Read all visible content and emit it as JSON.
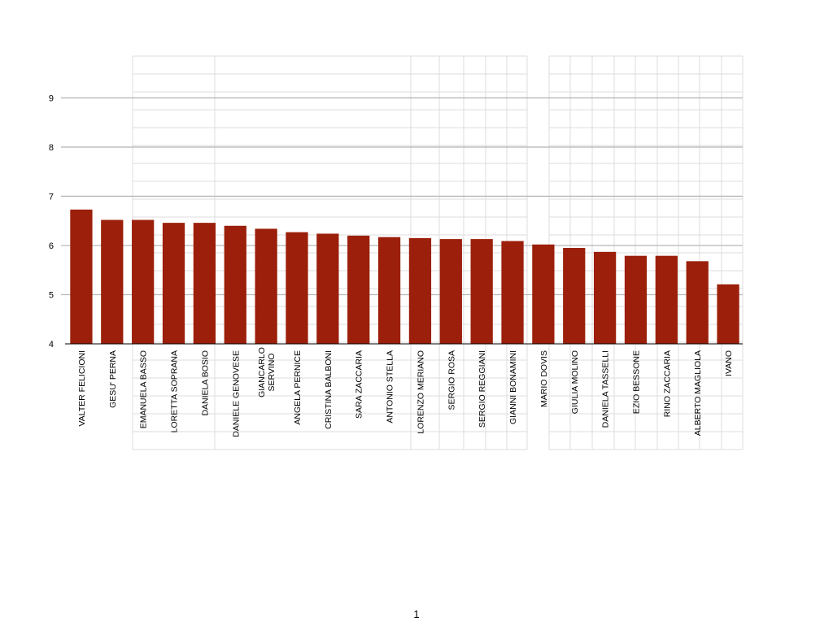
{
  "chart_data": {
    "type": "bar",
    "title": "",
    "xlabel": "",
    "ylabel": "",
    "ylim": [
      4,
      9.85
    ],
    "yticks": [
      4,
      5,
      6,
      7,
      8,
      9
    ],
    "grid": true,
    "bar_color": "#9b1f0a",
    "categories": [
      "VALTER FELICIONI",
      "GESU' PERNA",
      "EMANUELA  BASSO",
      "LORETTA SOPRANA",
      "DANIELA BOSIO",
      "DANIELE GENOVESE",
      "GIANCARLO SERVINO",
      "ANGELA PERNICE",
      "CRISTINA BALBONI",
      "SARA  ZACCARIA",
      "ANTONIO STELLA",
      "LORENZO MERIANO",
      "SERGIO ROSA",
      "SERGIO REGGIANI",
      "GIANNI BONAMINI",
      "MARIO DOVIS",
      "GIULIA MOLINO",
      "DANIELA TASSELLI",
      "EZIO BESSONE",
      "RINO ZACCARIA",
      "ALBERTO MAGLIOLA",
      "IVANO"
    ],
    "values": [
      6.73,
      6.52,
      6.52,
      6.46,
      6.46,
      6.4,
      6.34,
      6.27,
      6.24,
      6.2,
      6.17,
      6.15,
      6.13,
      6.13,
      6.09,
      6.02,
      5.95,
      5.87,
      5.79,
      5.79,
      5.68,
      5.21
    ]
  },
  "page": {
    "number": "1"
  }
}
